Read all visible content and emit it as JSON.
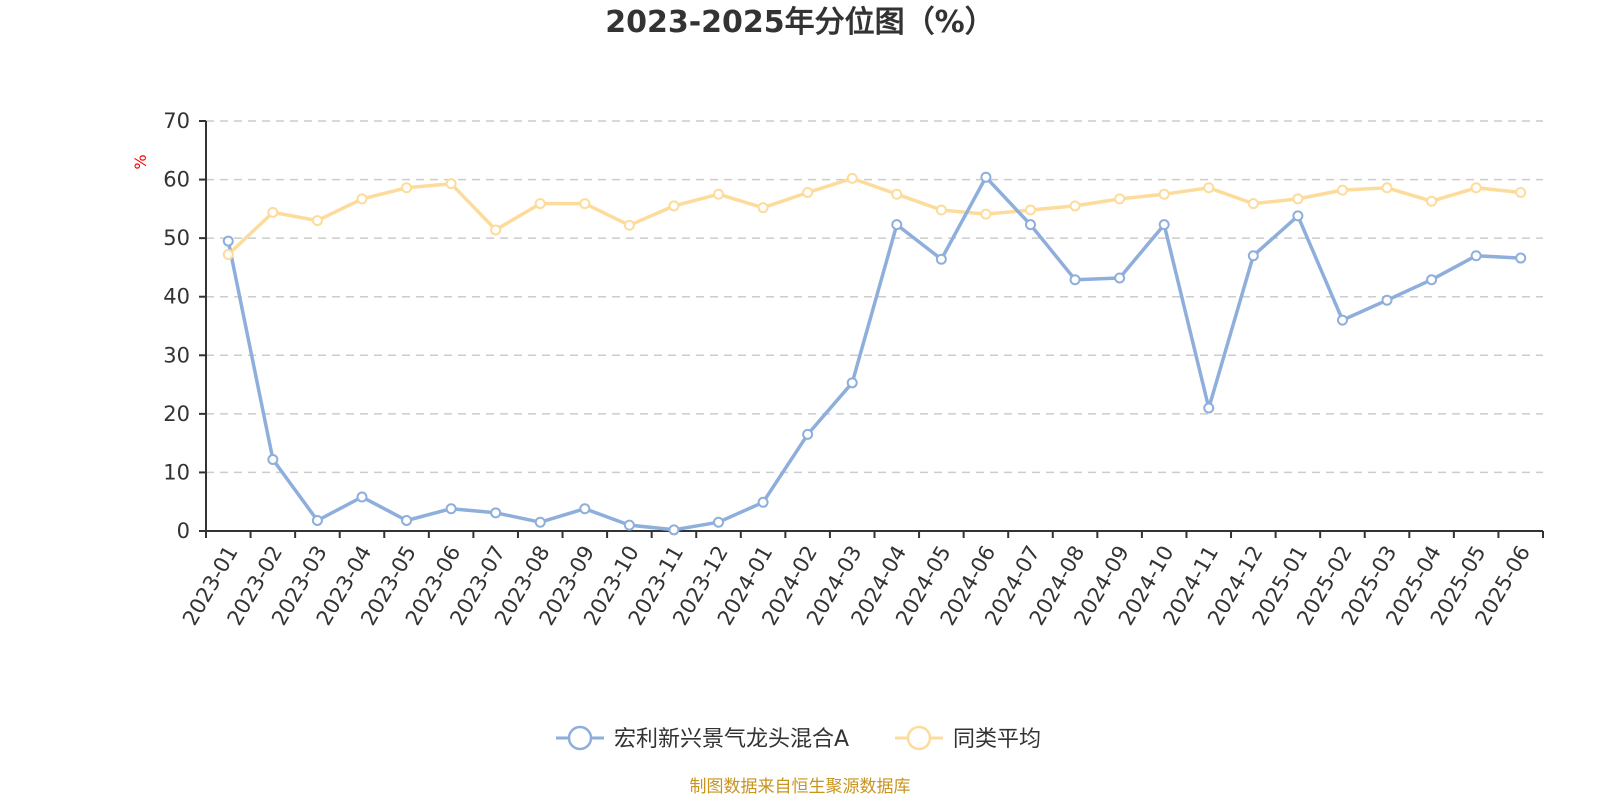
{
  "chart_data": {
    "type": "line",
    "title": "2023-2025年分位图（%）",
    "ylabel": "%",
    "ylim": [
      0,
      70
    ],
    "yticks": [
      0,
      10,
      20,
      30,
      40,
      50,
      60,
      70
    ],
    "grid": true,
    "legend_position": "bottom",
    "categories": [
      "2023-01",
      "2023-02",
      "2023-03",
      "2023-04",
      "2023-05",
      "2023-06",
      "2023-07",
      "2023-08",
      "2023-09",
      "2023-10",
      "2023-11",
      "2023-12",
      "2024-01",
      "2024-02",
      "2024-03",
      "2024-04",
      "2024-05",
      "2024-06",
      "2024-07",
      "2024-08",
      "2024-09",
      "2024-10",
      "2024-11",
      "2024-12",
      "2025-01",
      "2025-02",
      "2025-03",
      "2025-04",
      "2025-05",
      "2025-06"
    ],
    "series": [
      {
        "name": "宏利新兴景气龙头混合A",
        "color": "#8eaedb",
        "values": [
          49.5,
          12.2,
          1.8,
          5.8,
          1.8,
          3.8,
          3.1,
          1.5,
          3.8,
          1.0,
          0.2,
          1.5,
          4.9,
          16.5,
          25.3,
          52.3,
          46.4,
          60.4,
          52.3,
          42.9,
          43.2,
          52.3,
          21.0,
          47.0,
          53.8,
          36.0,
          39.4,
          42.9,
          47.0,
          46.6
        ]
      },
      {
        "name": "同类平均",
        "color": "#fddc9b",
        "values": [
          47.2,
          54.4,
          53.0,
          56.7,
          58.6,
          59.3,
          51.4,
          55.9,
          55.9,
          52.2,
          55.5,
          57.5,
          55.2,
          57.8,
          60.2,
          57.5,
          54.8,
          54.1,
          54.8,
          55.5,
          56.7,
          57.5,
          58.6,
          55.9,
          56.7,
          58.2,
          58.6,
          56.3,
          58.6,
          57.8
        ]
      }
    ]
  },
  "footer": {
    "source": "制图数据来自恒生聚源数据库"
  }
}
